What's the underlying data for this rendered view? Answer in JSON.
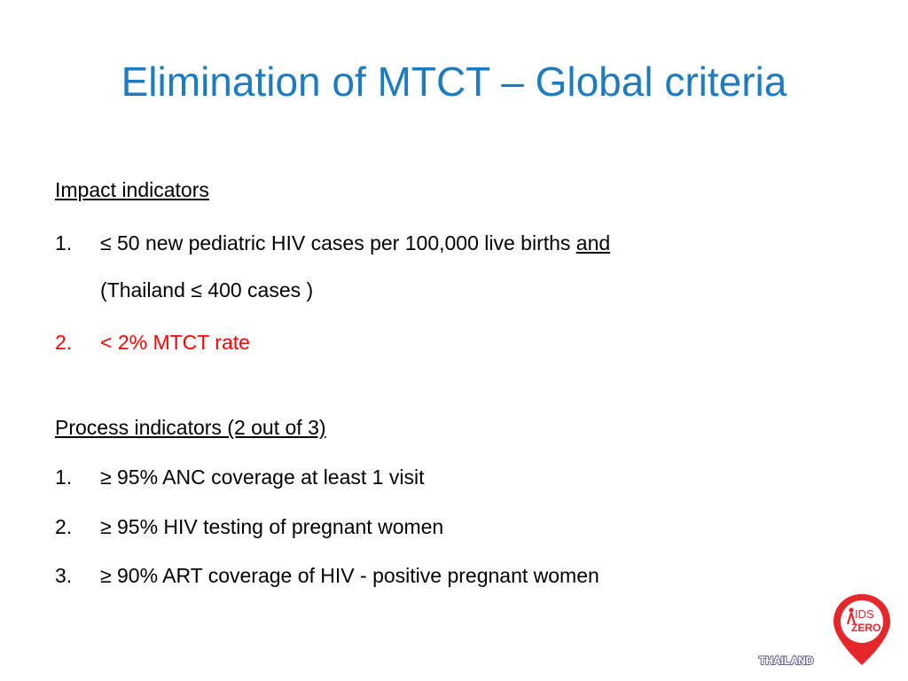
{
  "slide": {
    "title": "Elimination of MTCT – Global criteria",
    "impact": {
      "heading": "Impact indicators",
      "items": [
        {
          "num": "1.",
          "text": "≤ 50 new pediatric HIV cases per 100,000 live births ",
          "emph": "and",
          "line2": "(Thailand ≤ 400 cases )"
        },
        {
          "num": "2.",
          "text": "< 2% MTCT rate"
        }
      ]
    },
    "process": {
      "heading": "Process indicators (2 out of 3)",
      "items": [
        {
          "num": "1.",
          "text": "≥ 95% ANC coverage at least 1 visit"
        },
        {
          "num": "2.",
          "text": "≥ 95% HIV testing of pregnant women"
        },
        {
          "num": "3.",
          "text": "≥ 90% ART coverage of HIV - positive pregnant women"
        }
      ]
    }
  },
  "logo": {
    "text_a": "IDS",
    "text_b": "ZERO",
    "country": "THAILAND",
    "color": "#e5262b"
  },
  "colors": {
    "title": "#1f7bbf",
    "highlight": "#ff0000"
  }
}
